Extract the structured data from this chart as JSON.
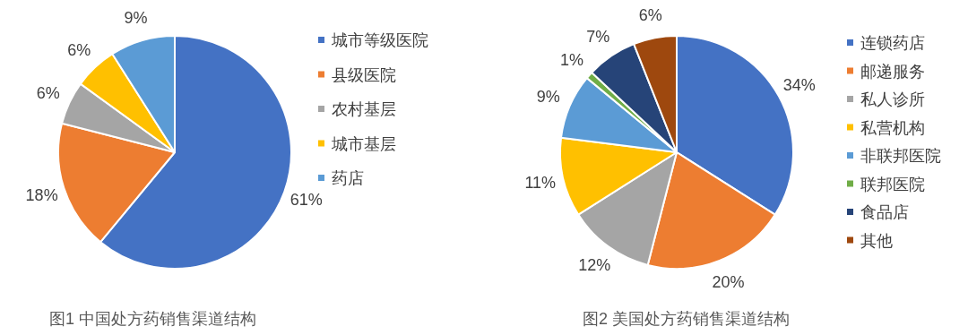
{
  "chart_data": [
    {
      "type": "pie",
      "title": "图1 中国处方药销售渠道结构",
      "legend": "right",
      "categories": [
        "城市等级医院",
        "县级医院",
        "农村基层",
        "城市基层",
        "药店"
      ],
      "values": [
        61,
        18,
        6,
        6,
        9
      ],
      "value_labels": [
        "61%",
        "18%",
        "6%",
        "6%",
        "9%"
      ],
      "colors": [
        "#4472c4",
        "#ed7d31",
        "#a5a5a5",
        "#ffc000",
        "#5b9bd5"
      ]
    },
    {
      "type": "pie",
      "title": "图2 美国处方药销售渠道结构",
      "legend": "right",
      "categories": [
        "连锁药店",
        "邮递服务",
        "私人诊所",
        "私营机构",
        "非联邦医院",
        "联邦医院",
        "食品店",
        "其他"
      ],
      "values": [
        34,
        20,
        12,
        11,
        9,
        1,
        7,
        6
      ],
      "value_labels": [
        "34%",
        "20%",
        "12%",
        "11%",
        "9%",
        "1%",
        "7%",
        "6%"
      ],
      "colors": [
        "#4472c4",
        "#ed7d31",
        "#a5a5a5",
        "#ffc000",
        "#5b9bd5",
        "#70ad47",
        "#264478",
        "#9e480e"
      ]
    }
  ]
}
